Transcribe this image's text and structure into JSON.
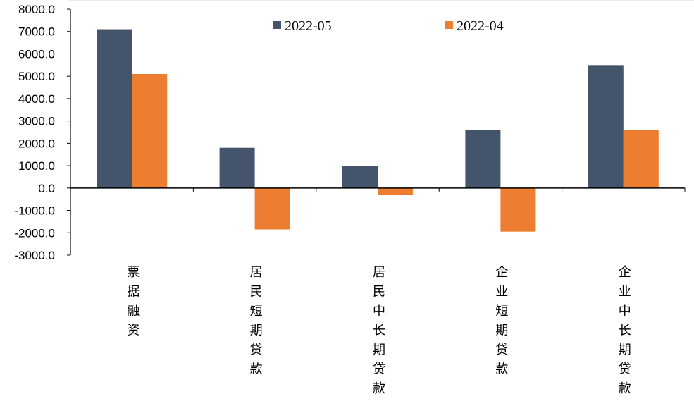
{
  "chart_data": {
    "type": "bar",
    "title": "",
    "xlabel": "",
    "ylabel": "",
    "ylim": [
      -3000,
      8000
    ],
    "yticks": [
      8000,
      7000,
      6000,
      5000,
      4000,
      3000,
      2000,
      1000,
      0,
      -1000,
      -2000,
      -3000
    ],
    "ytick_labels": [
      "8000.0",
      "7000.0",
      "6000.0",
      "5000.0",
      "4000.0",
      "3000.0",
      "2000.0",
      "1000.0",
      "0.0",
      "-1000.0",
      "-2000.0",
      "-3000.0"
    ],
    "categories": [
      "票据融资",
      "居民短期贷款",
      "居民中长期贷款",
      "企业短期贷款",
      "企业中长期贷款"
    ],
    "series": [
      {
        "name": "2022-05",
        "color": "#44546a",
        "values": [
          7100,
          1800,
          1000,
          2600,
          5500
        ]
      },
      {
        "name": "2022-04",
        "color": "#ed7d31",
        "values": [
          5100,
          -1850,
          -300,
          -1950,
          2600
        ]
      }
    ],
    "grid": false,
    "legend_position": "top-center",
    "category_label_orientation": "vertical"
  }
}
